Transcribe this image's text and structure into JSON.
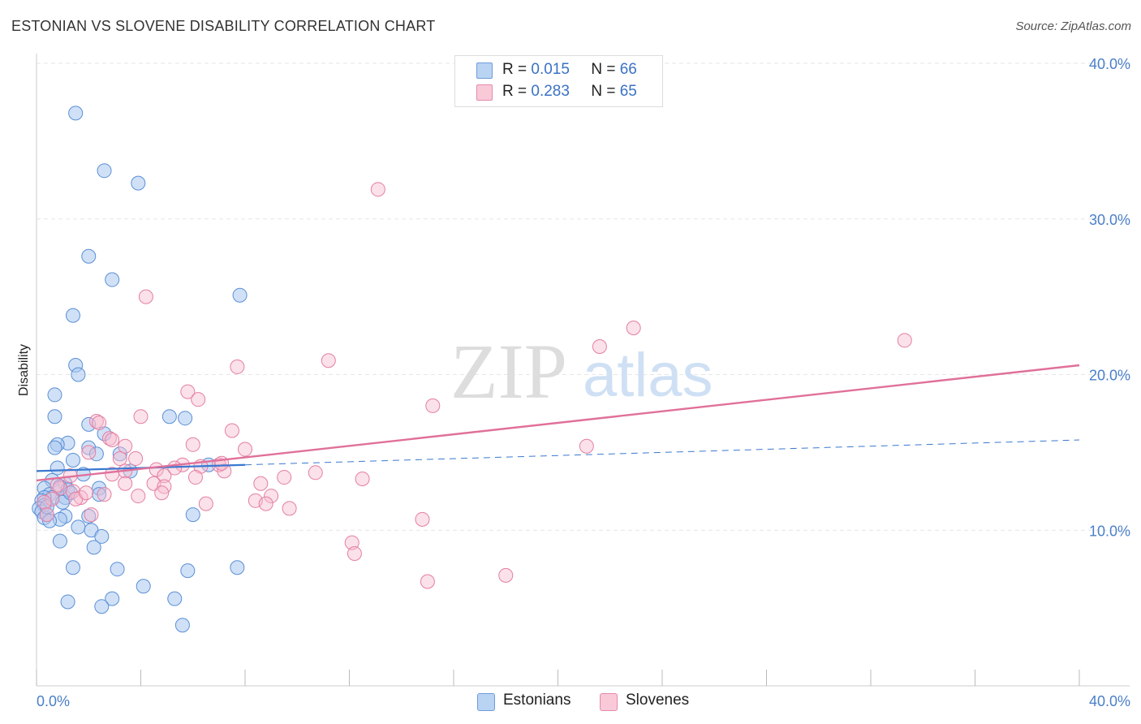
{
  "title": "ESTONIAN VS SLOVENE DISABILITY CORRELATION CHART",
  "source": "Source: ZipAtlas.com",
  "watermark": {
    "zip": "ZIP",
    "atlas": "atlas"
  },
  "legend": {
    "rows": [
      {
        "r_label": "R =",
        "r_value": "0.015",
        "n_label": "N =",
        "n_value": "66"
      },
      {
        "r_label": "R =",
        "r_value": "0.283",
        "n_label": "N =",
        "n_value": "65"
      }
    ]
  },
  "colors": {
    "estonians_fill": "#a9c8f0",
    "estonians_stroke": "#5b8fd6",
    "estonians_line": "#3a78d0",
    "slovenes_fill": "#f7bdd0",
    "slovenes_stroke": "#e47fa2",
    "slovenes_line": "#e0709a",
    "tick_text": "#4a7fc9",
    "grid": "#e6e6e6"
  },
  "chart_data": {
    "type": "scatter",
    "title": "ESTONIAN VS SLOVENE DISABILITY CORRELATION CHART",
    "xlabel": "",
    "ylabel": "Disability",
    "xlim": [
      0,
      40
    ],
    "ylim": [
      0,
      40
    ],
    "x_tick_labels": [
      "0.0%",
      "40.0%"
    ],
    "y_ticks": [
      10,
      20,
      30,
      40
    ],
    "y_tick_labels": [
      "10.0%",
      "20.0%",
      "30.0%",
      "40.0%"
    ],
    "grid": true,
    "legend_position": "top-center",
    "series": [
      {
        "name": "Estonians",
        "r": 0.015,
        "n": 66,
        "trend": {
          "solid_x": [
            0,
            8
          ],
          "y_at_0": 13.8,
          "y_at_40": 15.8
        },
        "points": [
          [
            1.5,
            36.8
          ],
          [
            2.6,
            33.1
          ],
          [
            3.9,
            32.3
          ],
          [
            2.0,
            27.6
          ],
          [
            2.9,
            26.1
          ],
          [
            7.8,
            25.1
          ],
          [
            1.4,
            23.8
          ],
          [
            1.5,
            20.6
          ],
          [
            1.6,
            20.0
          ],
          [
            0.7,
            18.7
          ],
          [
            0.7,
            17.3
          ],
          [
            5.1,
            17.3
          ],
          [
            5.7,
            17.2
          ],
          [
            2.0,
            16.8
          ],
          [
            2.6,
            16.2
          ],
          [
            1.2,
            15.6
          ],
          [
            0.8,
            15.5
          ],
          [
            0.7,
            15.3
          ],
          [
            2.0,
            15.3
          ],
          [
            3.2,
            14.9
          ],
          [
            2.3,
            14.9
          ],
          [
            1.4,
            14.5
          ],
          [
            6.6,
            14.2
          ],
          [
            0.8,
            14.0
          ],
          [
            3.6,
            13.8
          ],
          [
            1.8,
            13.6
          ],
          [
            0.6,
            13.2
          ],
          [
            1.1,
            13.0
          ],
          [
            0.9,
            12.8
          ],
          [
            2.4,
            12.7
          ],
          [
            0.3,
            12.7
          ],
          [
            1.2,
            12.6
          ],
          [
            0.5,
            12.3
          ],
          [
            2.4,
            12.3
          ],
          [
            0.6,
            12.1
          ],
          [
            0.3,
            12.1
          ],
          [
            1.1,
            12.1
          ],
          [
            0.2,
            11.9
          ],
          [
            1.0,
            11.8
          ],
          [
            0.3,
            11.6
          ],
          [
            0.1,
            11.4
          ],
          [
            0.2,
            11.2
          ],
          [
            0.4,
            11.0
          ],
          [
            1.1,
            10.9
          ],
          [
            2.0,
            10.9
          ],
          [
            0.3,
            10.8
          ],
          [
            0.9,
            10.7
          ],
          [
            0.5,
            10.6
          ],
          [
            6.0,
            11.0
          ],
          [
            1.6,
            10.2
          ],
          [
            2.1,
            10.0
          ],
          [
            2.5,
            9.6
          ],
          [
            0.9,
            9.3
          ],
          [
            2.2,
            8.9
          ],
          [
            1.4,
            7.6
          ],
          [
            3.1,
            7.5
          ],
          [
            5.8,
            7.4
          ],
          [
            7.7,
            7.6
          ],
          [
            4.1,
            6.4
          ],
          [
            2.9,
            5.6
          ],
          [
            5.3,
            5.6
          ],
          [
            1.2,
            5.4
          ],
          [
            2.5,
            5.1
          ],
          [
            5.6,
            3.9
          ],
          [
            0.4,
            11.5
          ],
          [
            1.3,
            12.4
          ]
        ]
      },
      {
        "name": "Slovenes",
        "r": 0.283,
        "n": 65,
        "trend": {
          "x": [
            0,
            40
          ],
          "y_at_0": 13.2,
          "y_at_40": 20.6
        },
        "points": [
          [
            13.1,
            31.9
          ],
          [
            4.2,
            25.0
          ],
          [
            22.9,
            23.0
          ],
          [
            33.3,
            22.2
          ],
          [
            21.6,
            21.8
          ],
          [
            11.2,
            20.9
          ],
          [
            7.7,
            20.5
          ],
          [
            5.8,
            18.9
          ],
          [
            6.2,
            18.4
          ],
          [
            15.2,
            18.0
          ],
          [
            4.0,
            17.3
          ],
          [
            2.3,
            17.0
          ],
          [
            7.5,
            16.4
          ],
          [
            2.8,
            15.9
          ],
          [
            2.4,
            16.9
          ],
          [
            2.9,
            15.8
          ],
          [
            6.0,
            15.5
          ],
          [
            3.4,
            15.4
          ],
          [
            8.0,
            15.2
          ],
          [
            21.1,
            15.4
          ],
          [
            2.0,
            15.0
          ],
          [
            3.8,
            14.6
          ],
          [
            3.2,
            14.6
          ],
          [
            5.6,
            14.2
          ],
          [
            7.0,
            14.2
          ],
          [
            6.3,
            14.1
          ],
          [
            4.6,
            13.9
          ],
          [
            3.4,
            13.8
          ],
          [
            7.2,
            13.8
          ],
          [
            2.9,
            13.6
          ],
          [
            4.9,
            13.5
          ],
          [
            1.3,
            13.5
          ],
          [
            6.1,
            13.4
          ],
          [
            10.7,
            13.7
          ],
          [
            9.5,
            13.4
          ],
          [
            12.5,
            13.3
          ],
          [
            4.5,
            13.0
          ],
          [
            3.4,
            13.0
          ],
          [
            4.9,
            12.8
          ],
          [
            0.9,
            12.7
          ],
          [
            1.4,
            12.5
          ],
          [
            2.6,
            12.3
          ],
          [
            4.8,
            12.4
          ],
          [
            9.0,
            12.2
          ],
          [
            3.9,
            12.2
          ],
          [
            1.7,
            12.1
          ],
          [
            0.6,
            12.0
          ],
          [
            1.5,
            12.0
          ],
          [
            8.4,
            11.9
          ],
          [
            0.3,
            11.8
          ],
          [
            6.5,
            11.7
          ],
          [
            8.8,
            11.7
          ],
          [
            9.7,
            11.4
          ],
          [
            2.1,
            11.0
          ],
          [
            14.8,
            10.7
          ],
          [
            0.4,
            11.0
          ],
          [
            12.1,
            9.2
          ],
          [
            12.2,
            8.5
          ],
          [
            18.0,
            7.1
          ],
          [
            15.0,
            6.7
          ],
          [
            8.6,
            13.0
          ],
          [
            5.3,
            14.0
          ],
          [
            0.8,
            12.9
          ],
          [
            1.9,
            12.4
          ],
          [
            7.1,
            14.3
          ]
        ]
      }
    ]
  },
  "bottom_legend": [
    {
      "label": "Estonians"
    },
    {
      "label": "Slovenes"
    }
  ]
}
